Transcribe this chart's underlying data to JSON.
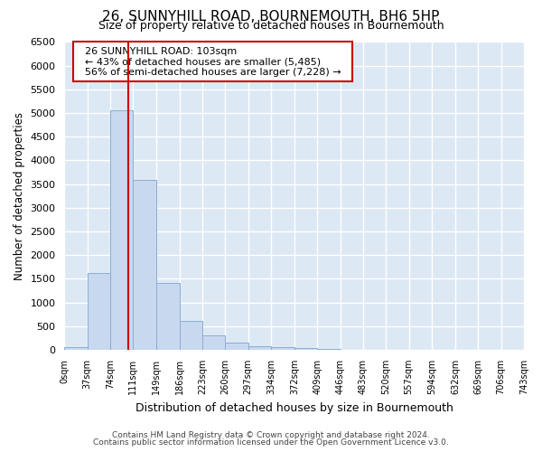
{
  "title": "26, SUNNYHILL ROAD, BOURNEMOUTH, BH6 5HP",
  "subtitle": "Size of property relative to detached houses in Bournemouth",
  "xlabel": "Distribution of detached houses by size in Bournemouth",
  "ylabel": "Number of detached properties",
  "footer_line1": "Contains HM Land Registry data © Crown copyright and database right 2024.",
  "footer_line2": "Contains public sector information licensed under the Open Government Licence v3.0.",
  "annotation_line1": "26 SUNNYHILL ROAD: 103sqm",
  "annotation_line2": "← 43% of detached houses are smaller (5,485)",
  "annotation_line3": "56% of semi-detached houses are larger (7,228) →",
  "bar_edges": [
    0,
    37,
    74,
    111,
    149,
    186,
    223,
    260,
    297,
    334,
    372,
    409,
    446,
    483,
    520,
    557,
    594,
    632,
    669,
    706,
    743
  ],
  "bar_heights": [
    60,
    1620,
    5060,
    3580,
    1420,
    610,
    300,
    150,
    80,
    50,
    30,
    10,
    5,
    0,
    0,
    0,
    0,
    0,
    0,
    0
  ],
  "bar_color": "#c8d8ee",
  "bar_edge_color": "#8aaed4",
  "vline_color": "#cc0000",
  "vline_x": 103,
  "ylim": [
    0,
    6500
  ],
  "yticks": [
    0,
    500,
    1000,
    1500,
    2000,
    2500,
    3000,
    3500,
    4000,
    4500,
    5000,
    5500,
    6000,
    6500
  ],
  "outer_bg": "#ffffff",
  "plot_bg_color": "#dde8f5",
  "grid_color": "#ffffff",
  "annotation_box_color": "#ffffff",
  "annotation_box_edge": "#cc0000",
  "title_fontsize": 11,
  "subtitle_fontsize": 9
}
